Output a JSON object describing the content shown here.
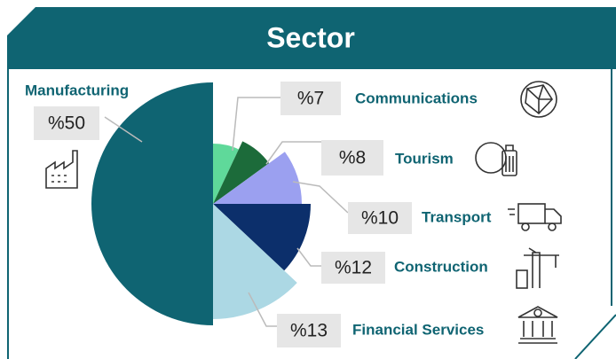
{
  "chart_data": {
    "type": "pie",
    "title": "Sector",
    "categories": [
      "Communications",
      "Tourism",
      "Transport",
      "Construction",
      "Financial Services",
      "Manufacturing"
    ],
    "values": [
      7,
      8,
      10,
      12,
      13,
      50
    ],
    "value_labels": [
      "%7",
      "%8",
      "%10",
      "%12",
      "%13",
      "%50"
    ],
    "colors": [
      "#5fd99a",
      "#1c6b3a",
      "#9ba0f0",
      "#0c2f6b",
      "#acd8e4",
      "#0f6472"
    ]
  }
}
